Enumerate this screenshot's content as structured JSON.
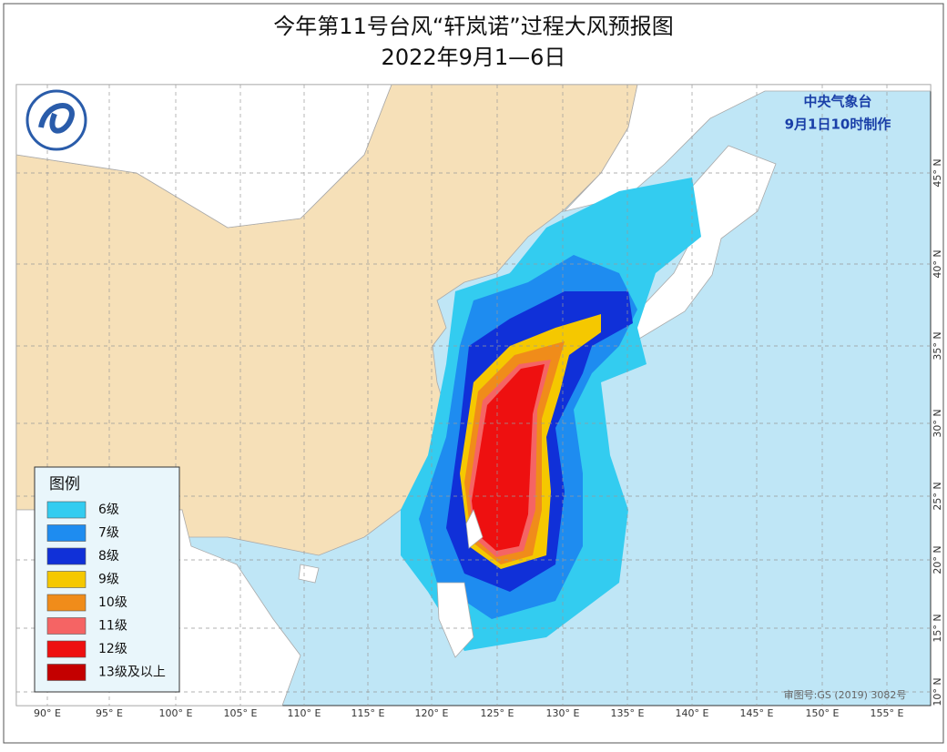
{
  "header": {
    "title": "今年第11号台风“轩岚诺”过程大风预报图",
    "subtitle": "2022年9月1—6日"
  },
  "issuer": {
    "agency": "中央气象台",
    "issued": "9月1日10时制作"
  },
  "legend": {
    "title": "图例",
    "items": [
      {
        "label": "6级",
        "color": "#33ccf0"
      },
      {
        "label": "7级",
        "color": "#1e8cf0"
      },
      {
        "label": "8级",
        "color": "#1030d8"
      },
      {
        "label": "9级",
        "color": "#f5c800"
      },
      {
        "label": "10级",
        "color": "#f08c1a"
      },
      {
        "label": "11级",
        "color": "#f56464"
      },
      {
        "label": "12级",
        "color": "#ee1010"
      },
      {
        "label": "13级及以上",
        "color": "#c40000"
      }
    ]
  },
  "longitude_labels": [
    "90° E",
    "95° E",
    "100° E",
    "105° E",
    "110° E",
    "115° E",
    "120° E",
    "125° E",
    "130° E",
    "135° E",
    "140° E",
    "145° E",
    "150° E",
    "155° E"
  ],
  "latitude_labels": [
    "45° N",
    "40° N",
    "35° N",
    "30° N",
    "25° N",
    "20° N",
    "15° N",
    "10° N"
  ],
  "review_number": "审图号:GS (2019) 3082号"
}
